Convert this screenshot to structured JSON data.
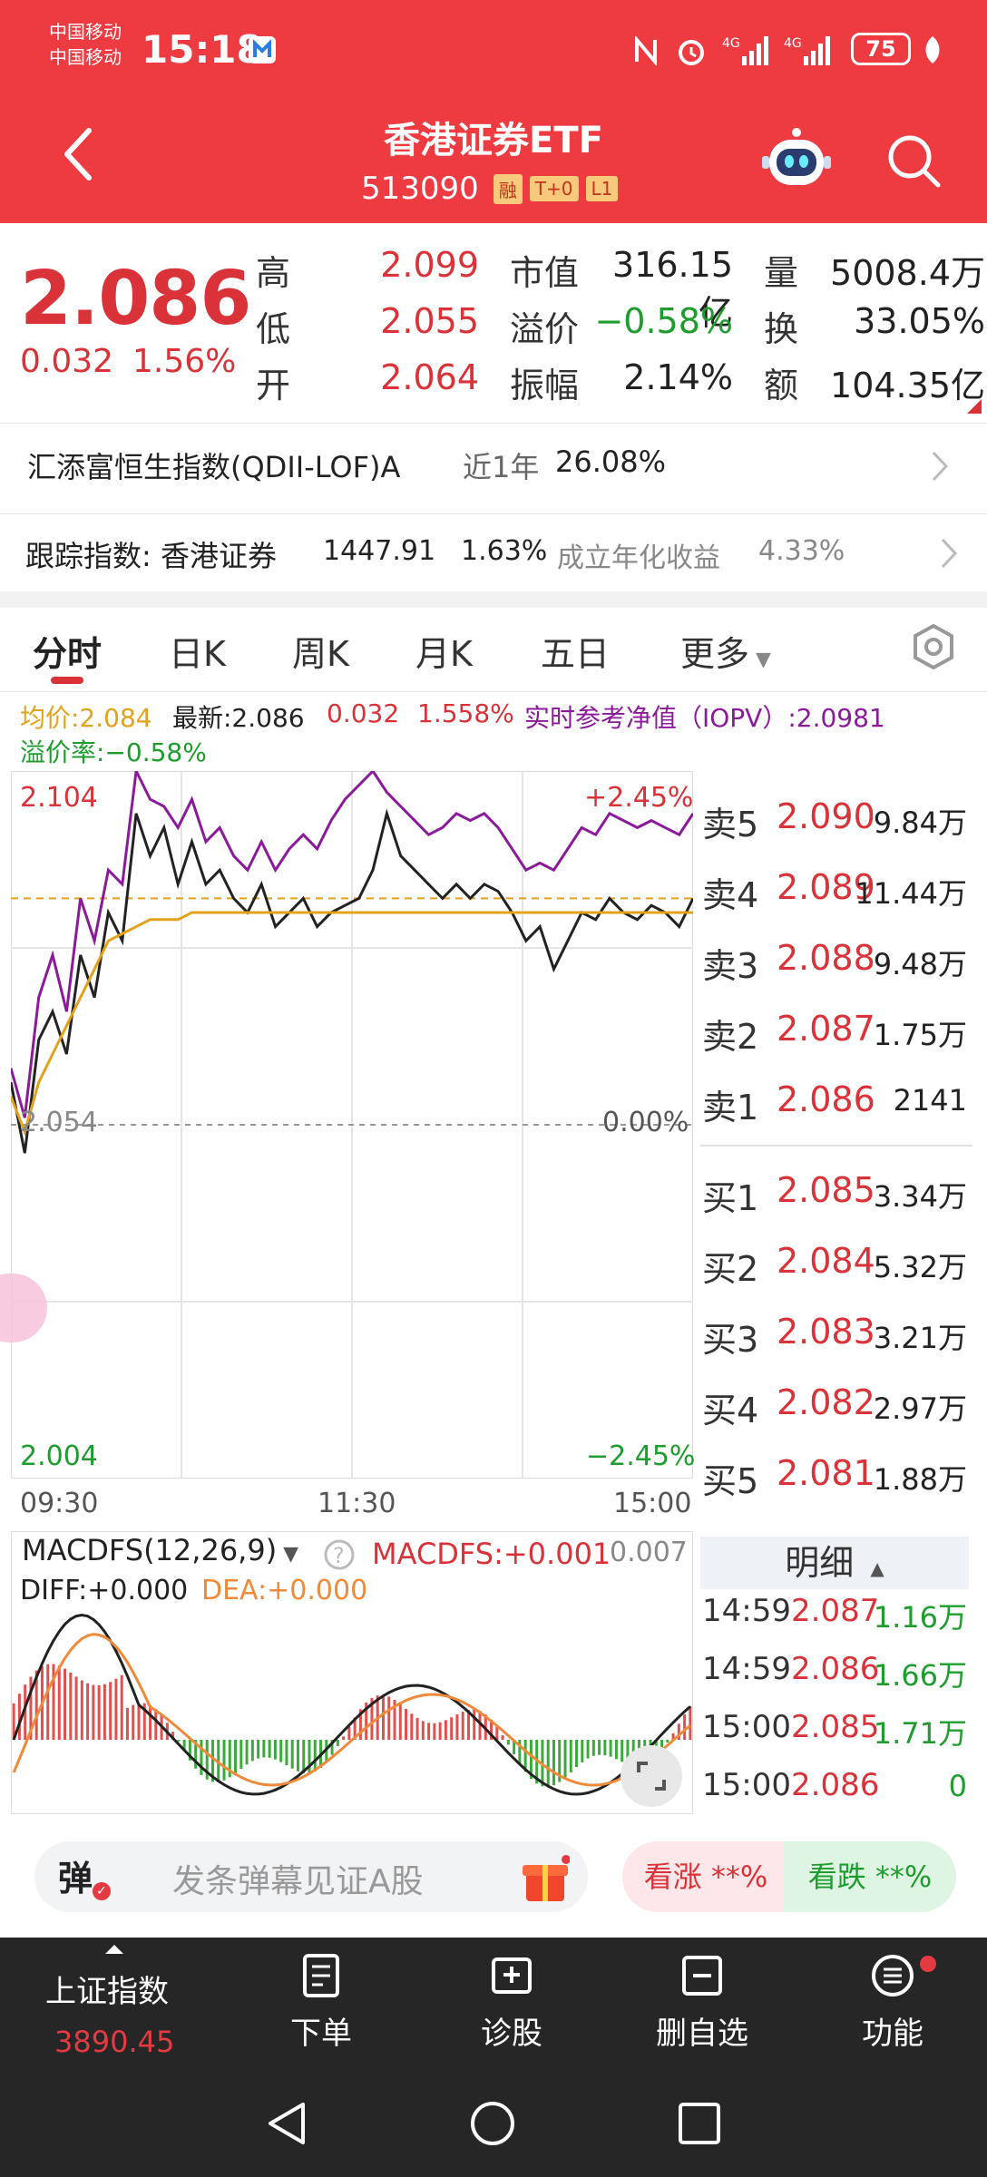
{
  "status": {
    "carrier1": "中国移动",
    "carrier2": "中国移动",
    "time": "15:18",
    "battery": "75"
  },
  "header": {
    "title": "香港证券ETF",
    "code": "513090",
    "tags": [
      "融",
      "T+0",
      "L1"
    ]
  },
  "quote": {
    "price": "2.086",
    "change": "0.032",
    "change_pct": "1.56%",
    "high_label": "高",
    "high": "2.099",
    "low_label": "低",
    "low": "2.055",
    "open_label": "开",
    "open": "2.064",
    "mktcap_label": "市值",
    "mktcap": "316.15亿",
    "premium_label": "溢价",
    "premium": "−0.58%",
    "amplitude_label": "振幅",
    "amplitude": "2.14%",
    "volume_label": "量",
    "volume": "5008.4万",
    "turnover_label": "换",
    "turnover": "33.05%",
    "amount_label": "额",
    "amount": "104.35亿"
  },
  "fund_row": {
    "name": "汇添富恒生指数(QDII-LOF)A",
    "period": "近1年",
    "return": "26.08%"
  },
  "track_row": {
    "label": "跟踪指数: 香港证券",
    "index_value": "1447.91",
    "index_pct": "1.63%",
    "annual_label": "成立年化收益",
    "annual": "4.33%"
  },
  "tabs": [
    "分时",
    "日K",
    "周K",
    "月K",
    "五日",
    "更多"
  ],
  "chart_info": {
    "avg": "均价:2.084",
    "latest": "最新:2.086",
    "chg": "0.032",
    "pct": "1.558%",
    "iopv": "实时参考净值（IOPV）:2.0981",
    "premium_rate": "溢价率:−0.58%"
  },
  "chart_data": {
    "type": "line",
    "y_top": "2.104",
    "y_mid": "2.054",
    "y_bottom": "2.004",
    "pct_top": "+2.45%",
    "pct_mid": "0.00%",
    "pct_bottom": "−2.45%",
    "x_labels": [
      "09:30",
      "11:30",
      "15:00"
    ],
    "ylim": [
      2.004,
      2.104
    ],
    "series": [
      {
        "values": [
          2.06,
          2.05,
          2.066,
          2.07,
          2.064,
          2.078,
          2.072,
          2.084,
          2.08,
          2.098,
          2.092,
          2.096,
          2.088,
          2.094,
          2.088,
          2.09,
          2.086,
          2.084,
          2.088,
          2.082,
          2.084,
          2.086,
          2.082,
          2.084,
          2.085,
          2.086,
          2.09,
          2.098,
          2.092,
          2.09,
          2.088,
          2.086,
          2.088,
          2.086,
          2.088,
          2.087,
          2.084,
          2.08,
          2.082,
          2.076,
          2.08,
          2.084,
          2.083,
          2.086,
          2.084,
          2.083,
          2.085,
          2.084,
          2.082,
          2.086
        ]
      },
      {
        "values": [
          2.058,
          2.053,
          2.06,
          2.064,
          2.068,
          2.072,
          2.076,
          2.08,
          2.081,
          2.082,
          2.083,
          2.083,
          2.083,
          2.084,
          2.084,
          2.084,
          2.084,
          2.084,
          2.084,
          2.084,
          2.084,
          2.084,
          2.084,
          2.084,
          2.084,
          2.084,
          2.084,
          2.084,
          2.084,
          2.084,
          2.084,
          2.084,
          2.084,
          2.084,
          2.084,
          2.084,
          2.084,
          2.084,
          2.084,
          2.084,
          2.084,
          2.084,
          2.084,
          2.084,
          2.084,
          2.084,
          2.084,
          2.084,
          2.084,
          2.084
        ]
      },
      {
        "values": [
          2.062,
          2.055,
          2.072,
          2.078,
          2.07,
          2.086,
          2.08,
          2.09,
          2.088,
          2.104,
          2.1,
          2.099,
          2.096,
          2.1,
          2.094,
          2.096,
          2.092,
          2.09,
          2.094,
          2.09,
          2.093,
          2.095,
          2.093,
          2.097,
          2.1,
          2.102,
          2.104,
          2.101,
          2.099,
          2.097,
          2.095,
          2.096,
          2.098,
          2.097,
          2.098,
          2.096,
          2.093,
          2.09,
          2.091,
          2.09,
          2.093,
          2.096,
          2.095,
          2.098,
          2.097,
          2.096,
          2.097,
          2.096,
          2.095,
          2.098
        ]
      }
    ]
  },
  "macd": {
    "label": "MACDFS(12,26,9)",
    "value": "MACDFS:+0.001",
    "diff": "DIFF:+0.000",
    "dea": "DEA:+0.000",
    "top": "0.007"
  },
  "orderbook": {
    "asks": [
      {
        "label": "卖5",
        "price": "2.090",
        "vol": "9.84万"
      },
      {
        "label": "卖4",
        "price": "2.089",
        "vol": "11.44万"
      },
      {
        "label": "卖3",
        "price": "2.088",
        "vol": "9.48万"
      },
      {
        "label": "卖2",
        "price": "2.087",
        "vol": "1.75万"
      },
      {
        "label": "卖1",
        "price": "2.086",
        "vol": "2141"
      }
    ],
    "bids": [
      {
        "label": "买1",
        "price": "2.085",
        "vol": "3.34万"
      },
      {
        "label": "买2",
        "price": "2.084",
        "vol": "5.32万"
      },
      {
        "label": "买3",
        "price": "2.083",
        "vol": "3.21万"
      },
      {
        "label": "买4",
        "price": "2.082",
        "vol": "2.97万"
      },
      {
        "label": "买5",
        "price": "2.081",
        "vol": "1.88万"
      }
    ]
  },
  "detail": {
    "title": "明细",
    "rows": [
      {
        "time": "14:59",
        "price": "2.087",
        "vol": "1.16万"
      },
      {
        "time": "14:59",
        "price": "2.086",
        "vol": "1.66万"
      },
      {
        "time": "15:00",
        "price": "2.085",
        "vol": "1.71万"
      },
      {
        "time": "15:00",
        "price": "2.086",
        "vol": "0"
      }
    ]
  },
  "danmu": {
    "button": "弹",
    "placeholder": "发条弹幕见证A股",
    "up": "看涨 **%",
    "down": "看跌 **%"
  },
  "bottom": {
    "index_name": "上证指数",
    "index_value": "3890.45",
    "items": [
      "下单",
      "诊股",
      "删自选",
      "功能"
    ]
  },
  "colors": {
    "brand": "#ee3b41",
    "up": "#d93239",
    "down": "#1f9c2e",
    "iopv_line": "#8b1a9a",
    "avg_line": "#e2a21b"
  }
}
